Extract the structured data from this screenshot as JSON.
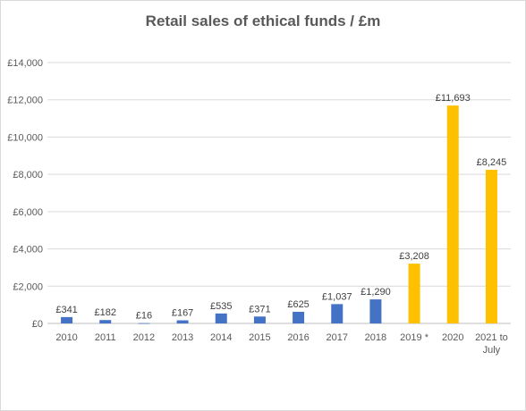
{
  "chart_data": {
    "type": "bar",
    "title": "Retail sales of ethical funds / £m",
    "xlabel": "",
    "ylabel": "",
    "categories": [
      "2010",
      "2011",
      "2012",
      "2013",
      "2014",
      "2015",
      "2016",
      "2017",
      "2018",
      "2019 *",
      "2020",
      "2021 to July"
    ],
    "values": [
      341,
      182,
      16,
      167,
      535,
      371,
      625,
      1037,
      1290,
      3208,
      11693,
      8245
    ],
    "data_labels": [
      "£341",
      "£182",
      "£16",
      "£167",
      "£535",
      "£371",
      "£625",
      "£1,037",
      "£1,290",
      "£3,208",
      "£11,693",
      "£8,245"
    ],
    "ylim": [
      0,
      14000
    ],
    "y_ticks": [
      0,
      2000,
      4000,
      6000,
      8000,
      10000,
      12000,
      14000
    ],
    "y_tick_labels": [
      "£0",
      "£2,000",
      "£4,000",
      "£6,000",
      "£8,000",
      "£10,000",
      "£12,000",
      "£14,000"
    ],
    "grid": true,
    "legend": "none",
    "colors": {
      "highlight_categories": [
        "2019 *",
        "2020",
        "2021 to July"
      ],
      "default_bar": "#4472c4",
      "highlight_bar": "#ffc000",
      "grid": "#d9d9d9",
      "axis": "#bfbfbf"
    }
  }
}
